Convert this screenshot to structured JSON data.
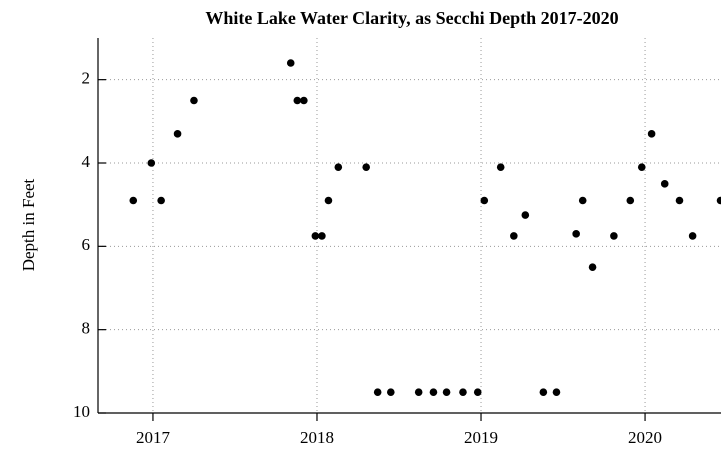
{
  "chart_data": {
    "type": "scatter",
    "title": "White Lake Water Clarity, as Secchi Depth  2017-2020",
    "y_label": "Depth in Feet",
    "color": "#000000",
    "grid": true,
    "xlim": [
      2016.665,
      2020.463
    ],
    "xticks": [
      2017,
      2018,
      2019,
      2020
    ],
    "ylim": [
      10,
      1
    ],
    "yticks": [
      2,
      4,
      6,
      8,
      10
    ],
    "x": [
      2016.88,
      2016.99,
      2017.05,
      2017.15,
      2017.25,
      2017.84,
      2017.88,
      2017.92,
      2017.99,
      2018.03,
      2018.07,
      2018.13,
      2018.3,
      2018.37,
      2018.45,
      2018.62,
      2018.71,
      2018.79,
      2018.89,
      2018.98,
      2019.02,
      2019.12,
      2019.2,
      2019.27,
      2019.38,
      2019.46,
      2019.58,
      2019.62,
      2019.68,
      2019.81,
      2019.91,
      2019.98,
      2020.04,
      2020.12,
      2020.21,
      2020.29,
      2020.46
    ],
    "values": [
      4.9,
      4.0,
      4.9,
      3.3,
      2.5,
      1.6,
      2.5,
      2.5,
      5.75,
      5.75,
      4.9,
      4.1,
      4.1,
      9.5,
      9.5,
      9.5,
      9.5,
      9.5,
      9.5,
      9.5,
      4.9,
      4.1,
      5.75,
      5.25,
      9.5,
      9.5,
      5.7,
      4.9,
      6.5,
      5.75,
      4.9,
      4.1,
      3.3,
      4.5,
      4.9,
      5.75,
      4.9
    ]
  }
}
